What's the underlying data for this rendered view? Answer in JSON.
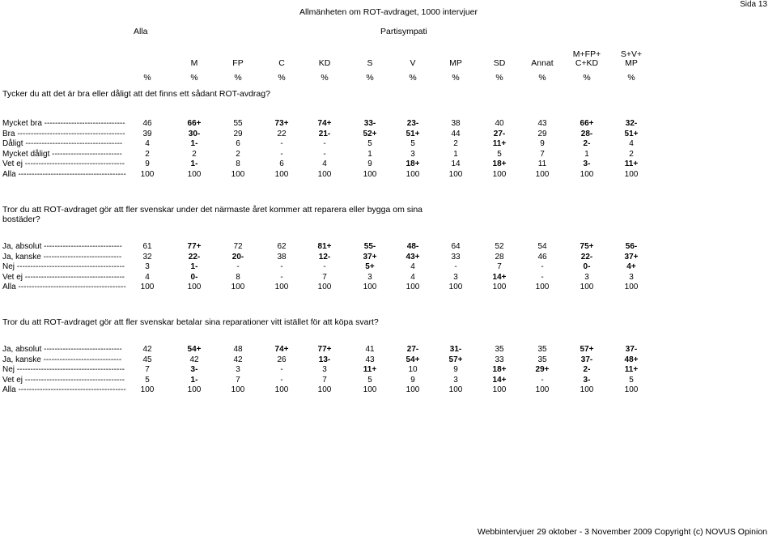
{
  "header": {
    "title": "Allmänheten om ROT-avdraget, 1000 intervjuer",
    "page": "Sida 13",
    "base_label": "Alla",
    "group_label": "Partisympati"
  },
  "columns": [
    {
      "top": "",
      "bottom": "",
      "unit": "%"
    },
    {
      "top": "",
      "bottom": "M",
      "unit": "%"
    },
    {
      "top": "",
      "bottom": "FP",
      "unit": "%"
    },
    {
      "top": "",
      "bottom": "C",
      "unit": "%"
    },
    {
      "top": "",
      "bottom": "KD",
      "unit": "%"
    },
    {
      "top": "",
      "bottom": "S",
      "unit": "%"
    },
    {
      "top": "",
      "bottom": "V",
      "unit": "%"
    },
    {
      "top": "",
      "bottom": "MP",
      "unit": "%"
    },
    {
      "top": "",
      "bottom": "SD",
      "unit": "%"
    },
    {
      "top": "",
      "bottom": "Annat",
      "unit": "%"
    },
    {
      "top": "M+FP+",
      "bottom": "C+KD",
      "unit": "%"
    },
    {
      "top": "S+V+",
      "bottom": "MP",
      "unit": "%"
    }
  ],
  "sections": [
    {
      "question": "Tycker du att det är bra eller dåligt att det finns ett sådant ROT-avdrag?",
      "rows": [
        {
          "label": "Mycket bra  ------------------------------",
          "values": [
            [
              "46",
              false
            ],
            [
              "66+",
              true
            ],
            [
              "55",
              false
            ],
            [
              "73+",
              true
            ],
            [
              "74+",
              true
            ],
            [
              "33-",
              true
            ],
            [
              "23-",
              true
            ],
            [
              "38",
              false
            ],
            [
              "40",
              false
            ],
            [
              "43",
              false
            ],
            [
              "66+",
              true
            ],
            [
              "32-",
              true
            ]
          ]
        },
        {
          "label": "Bra  ----------------------------------------",
          "values": [
            [
              "39",
              false
            ],
            [
              "30-",
              true
            ],
            [
              "29",
              false
            ],
            [
              "22",
              false
            ],
            [
              "21-",
              true
            ],
            [
              "52+",
              true
            ],
            [
              "51+",
              true
            ],
            [
              "44",
              false
            ],
            [
              "27-",
              true
            ],
            [
              "29",
              false
            ],
            [
              "28-",
              true
            ],
            [
              "51+",
              true
            ]
          ]
        },
        {
          "label": "Dåligt  ------------------------------------",
          "values": [
            [
              "4",
              false
            ],
            [
              "1-",
              true
            ],
            [
              "6",
              false
            ],
            [
              "-",
              false
            ],
            [
              "-",
              false
            ],
            [
              "5",
              false
            ],
            [
              "5",
              false
            ],
            [
              "2",
              false
            ],
            [
              "11+",
              true
            ],
            [
              "9",
              false
            ],
            [
              "2-",
              true
            ],
            [
              "4",
              false
            ]
          ]
        },
        {
          "label": "Mycket dåligt  --------------------------",
          "values": [
            [
              "2",
              false
            ],
            [
              "2",
              false
            ],
            [
              "2",
              false
            ],
            [
              "-",
              false
            ],
            [
              "-",
              false
            ],
            [
              "1",
              false
            ],
            [
              "3",
              false
            ],
            [
              "1",
              false
            ],
            [
              "5",
              false
            ],
            [
              "7",
              false
            ],
            [
              "1",
              false
            ],
            [
              "2",
              false
            ]
          ]
        },
        {
          "label": "Vet ej  -------------------------------------",
          "values": [
            [
              "9",
              false
            ],
            [
              "1-",
              true
            ],
            [
              "8",
              false
            ],
            [
              "6",
              false
            ],
            [
              "4",
              false
            ],
            [
              "9",
              false
            ],
            [
              "18+",
              true
            ],
            [
              "14",
              false
            ],
            [
              "18+",
              true
            ],
            [
              "11",
              false
            ],
            [
              "3-",
              true
            ],
            [
              "11+",
              true
            ]
          ]
        },
        {
          "label": "Alla  ----------------------------------------",
          "values": [
            [
              "100",
              false
            ],
            [
              "100",
              false
            ],
            [
              "100",
              false
            ],
            [
              "100",
              false
            ],
            [
              "100",
              false
            ],
            [
              "100",
              false
            ],
            [
              "100",
              false
            ],
            [
              "100",
              false
            ],
            [
              "100",
              false
            ],
            [
              "100",
              false
            ],
            [
              "100",
              false
            ],
            [
              "100",
              false
            ]
          ]
        }
      ]
    },
    {
      "question": "Tror du att ROT-avdraget gör att fler svenskar under det närmaste året kommer att reparera eller bygga om sina bostäder?",
      "rows": [
        {
          "label": "Ja, absolut  -----------------------------",
          "values": [
            [
              "61",
              false
            ],
            [
              "77+",
              true
            ],
            [
              "72",
              false
            ],
            [
              "62",
              false
            ],
            [
              "81+",
              true
            ],
            [
              "55-",
              true
            ],
            [
              "48-",
              true
            ],
            [
              "64",
              false
            ],
            [
              "52",
              false
            ],
            [
              "54",
              false
            ],
            [
              "75+",
              true
            ],
            [
              "56-",
              true
            ]
          ]
        },
        {
          "label": "Ja, kanske  -----------------------------",
          "values": [
            [
              "32",
              false
            ],
            [
              "22-",
              true
            ],
            [
              "20-",
              true
            ],
            [
              "38",
              false
            ],
            [
              "12-",
              true
            ],
            [
              "37+",
              true
            ],
            [
              "43+",
              true
            ],
            [
              "33",
              false
            ],
            [
              "28",
              false
            ],
            [
              "46",
              false
            ],
            [
              "22-",
              true
            ],
            [
              "37+",
              true
            ]
          ]
        },
        {
          "label": "Nej  ----------------------------------------",
          "values": [
            [
              "3",
              false
            ],
            [
              "1-",
              true
            ],
            [
              "-",
              false
            ],
            [
              "-",
              false
            ],
            [
              "-",
              false
            ],
            [
              "5+",
              true
            ],
            [
              "4",
              false
            ],
            [
              "-",
              false
            ],
            [
              "7",
              false
            ],
            [
              "-",
              false
            ],
            [
              "0-",
              true
            ],
            [
              "4+",
              true
            ]
          ]
        },
        {
          "label": "Vet ej  -------------------------------------",
          "values": [
            [
              "4",
              false
            ],
            [
              "0-",
              true
            ],
            [
              "8",
              false
            ],
            [
              "-",
              false
            ],
            [
              "7",
              false
            ],
            [
              "3",
              false
            ],
            [
              "4",
              false
            ],
            [
              "3",
              false
            ],
            [
              "14+",
              true
            ],
            [
              "-",
              false
            ],
            [
              "3",
              false
            ],
            [
              "3",
              false
            ]
          ]
        },
        {
          "label": "Alla  ----------------------------------------",
          "values": [
            [
              "100",
              false
            ],
            [
              "100",
              false
            ],
            [
              "100",
              false
            ],
            [
              "100",
              false
            ],
            [
              "100",
              false
            ],
            [
              "100",
              false
            ],
            [
              "100",
              false
            ],
            [
              "100",
              false
            ],
            [
              "100",
              false
            ],
            [
              "100",
              false
            ],
            [
              "100",
              false
            ],
            [
              "100",
              false
            ]
          ]
        }
      ]
    },
    {
      "question": "Tror du att ROT-avdraget gör att fler svenskar betalar sina reparationer vitt istället för att köpa svart?",
      "rows": [
        {
          "label": "Ja, absolut  -----------------------------",
          "values": [
            [
              "42",
              false
            ],
            [
              "54+",
              true
            ],
            [
              "48",
              false
            ],
            [
              "74+",
              true
            ],
            [
              "77+",
              true
            ],
            [
              "41",
              false
            ],
            [
              "27-",
              true
            ],
            [
              "31-",
              true
            ],
            [
              "35",
              false
            ],
            [
              "35",
              false
            ],
            [
              "57+",
              true
            ],
            [
              "37-",
              true
            ]
          ]
        },
        {
          "label": "Ja, kanske  -----------------------------",
          "values": [
            [
              "45",
              false
            ],
            [
              "42",
              false
            ],
            [
              "42",
              false
            ],
            [
              "26",
              false
            ],
            [
              "13-",
              true
            ],
            [
              "43",
              false
            ],
            [
              "54+",
              true
            ],
            [
              "57+",
              true
            ],
            [
              "33",
              false
            ],
            [
              "35",
              false
            ],
            [
              "37-",
              true
            ],
            [
              "48+",
              true
            ]
          ]
        },
        {
          "label": "Nej  ----------------------------------------",
          "values": [
            [
              "7",
              false
            ],
            [
              "3-",
              true
            ],
            [
              "3",
              false
            ],
            [
              "-",
              false
            ],
            [
              "3",
              false
            ],
            [
              "11+",
              true
            ],
            [
              "10",
              false
            ],
            [
              "9",
              false
            ],
            [
              "18+",
              true
            ],
            [
              "29+",
              true
            ],
            [
              "2-",
              true
            ],
            [
              "11+",
              true
            ]
          ]
        },
        {
          "label": "Vet ej  -------------------------------------",
          "values": [
            [
              "5",
              false
            ],
            [
              "1-",
              true
            ],
            [
              "7",
              false
            ],
            [
              "-",
              false
            ],
            [
              "7",
              false
            ],
            [
              "5",
              false
            ],
            [
              "9",
              false
            ],
            [
              "3",
              false
            ],
            [
              "14+",
              true
            ],
            [
              "-",
              false
            ],
            [
              "3-",
              true
            ],
            [
              "5",
              false
            ]
          ]
        },
        {
          "label": "Alla  ----------------------------------------",
          "values": [
            [
              "100",
              false
            ],
            [
              "100",
              false
            ],
            [
              "100",
              false
            ],
            [
              "100",
              false
            ],
            [
              "100",
              false
            ],
            [
              "100",
              false
            ],
            [
              "100",
              false
            ],
            [
              "100",
              false
            ],
            [
              "100",
              false
            ],
            [
              "100",
              false
            ],
            [
              "100",
              false
            ],
            [
              "100",
              false
            ]
          ]
        }
      ]
    }
  ],
  "footer": "Webbintervjuer 29 oktober - 3 November 2009 Copyright (c) NOVUS Opinion"
}
